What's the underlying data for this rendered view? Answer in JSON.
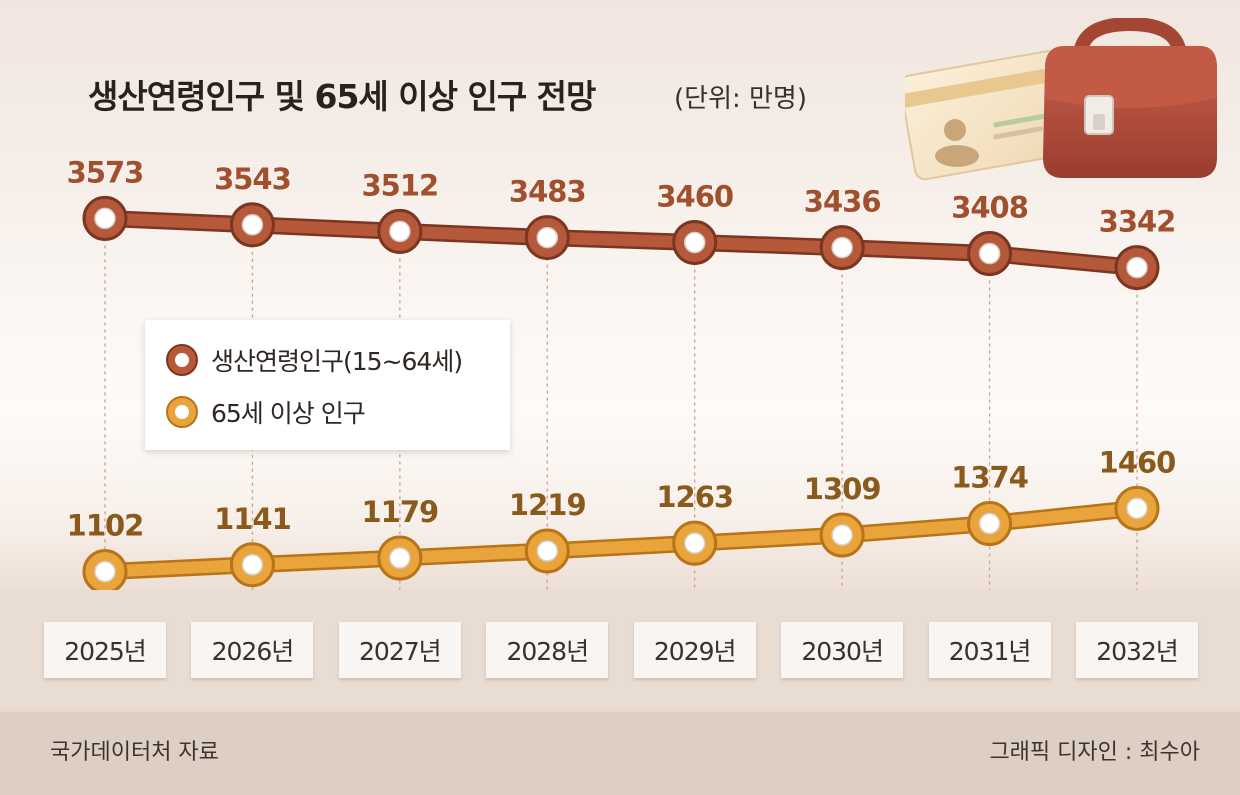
{
  "title": "생산연령인구 및 65세 이상 인구 전망",
  "unit": "(단위: 만명)",
  "source": "국가데이터처 자료",
  "credit": "그래픽 디자인 : 최수아",
  "colors": {
    "working_age": "#b5593a",
    "elderly": "#e9a43b",
    "working_age_text": "#a0502d",
    "elderly_text": "#8a5a1c"
  },
  "chart_data": {
    "type": "line",
    "categories": [
      "2025년",
      "2026년",
      "2027년",
      "2028년",
      "2029년",
      "2030년",
      "2031년",
      "2032년"
    ],
    "series": [
      {
        "name": "생산연령인구(15~64세)",
        "values": [
          3573,
          3543,
          3512,
          3483,
          3460,
          3436,
          3408,
          3342
        ]
      },
      {
        "name": "65세 이상 인구",
        "values": [
          1102,
          1141,
          1179,
          1219,
          1263,
          1309,
          1374,
          1460
        ]
      }
    ],
    "legend": "upper-left"
  },
  "illustration": {
    "icons": [
      "id-card-icon",
      "briefcase-icon"
    ]
  }
}
